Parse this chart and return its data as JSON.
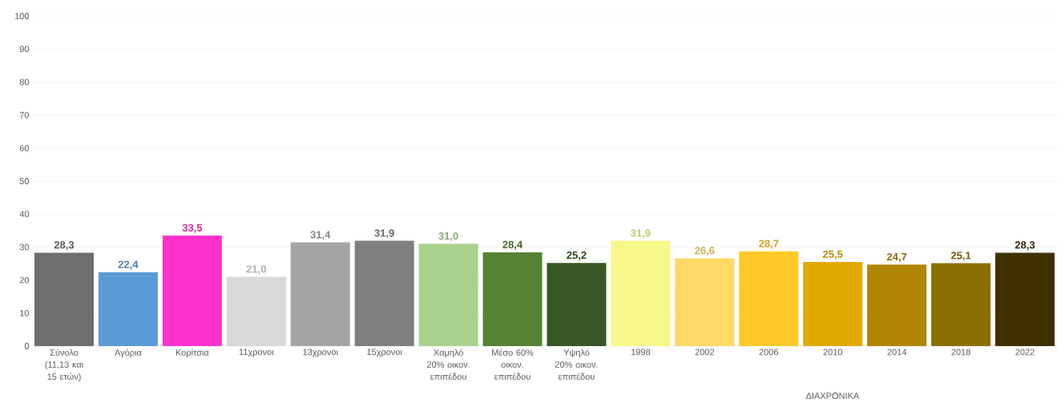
{
  "chart_data": {
    "type": "bar",
    "categories": [
      "Σύνολο (11,13 και 15 ετών)",
      "Αγόρια",
      "Κορίτσια",
      "11χρονοι",
      "13χρονοι",
      "15χρονοι",
      "Χαμηλό 20% οικον. επιπέδου",
      "Μέσο 60% οικον. επιπέδου",
      "Υψηλό 20% οικον. επιπέδου",
      "1998",
      "2002",
      "2006",
      "2010",
      "2014",
      "2018",
      "2022"
    ],
    "values": [
      28.3,
      22.4,
      33.5,
      21.0,
      31.4,
      31.9,
      31.0,
      28.4,
      25.2,
      31.9,
      26.6,
      28.7,
      25.5,
      24.7,
      25.1,
      28.3
    ],
    "value_labels": [
      "28,3",
      "22,4",
      "33,5",
      "21,0",
      "31,4",
      "31,9",
      "31,0",
      "28,4",
      "25,2",
      "31,9",
      "26,6",
      "28,7",
      "25,5",
      "24,7",
      "25,1",
      "28,3"
    ],
    "colors": [
      "#6e6e6e",
      "#5b9bd5",
      "#ff33cc",
      "#d9d9d9",
      "#a5a5a5",
      "#7f7f7f",
      "#a9d18e",
      "#548235",
      "#375623",
      "#f7f78a",
      "#ffd966",
      "#ffca28",
      "#e0aa00",
      "#b08600",
      "#8c6d00",
      "#3f3000"
    ],
    "ylim": [
      0,
      100
    ],
    "yticks": [
      0,
      10,
      20,
      30,
      40,
      50,
      60,
      70,
      80,
      90,
      100
    ],
    "grid": "y",
    "annotations": [
      "ΔΙΑΧΡΟΝΙΚΑ"
    ]
  }
}
